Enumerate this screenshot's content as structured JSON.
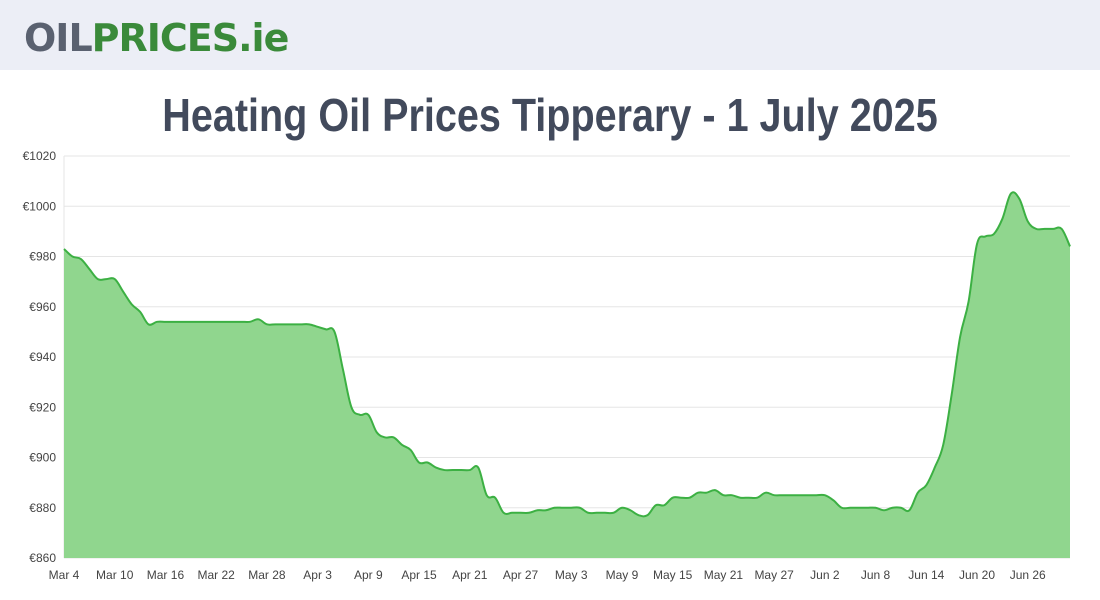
{
  "logo": {
    "part1": "OIL",
    "part2": "PRICES",
    "part3": ".ie"
  },
  "page_title": "Heating Oil Prices Tipperary - 1 July 2025",
  "colors": {
    "header_bg": "#eceef6",
    "line": "#3cb043",
    "fill": "#90d68e",
    "grid": "#e5e5e5",
    "title": "#424a5c"
  },
  "chart_data": {
    "type": "area",
    "title": "",
    "xlabel": "",
    "ylabel": "",
    "ylim": [
      860,
      1020
    ],
    "y_ticks": [
      860,
      880,
      900,
      920,
      940,
      960,
      980,
      1000,
      1020
    ],
    "y_tick_prefix": "€",
    "x_tick_labels": [
      "Mar 4",
      "Mar 10",
      "Mar 16",
      "Mar 22",
      "Mar 28",
      "Apr 3",
      "Apr 9",
      "Apr 15",
      "Apr 21",
      "Apr 27",
      "May 3",
      "May 9",
      "May 15",
      "May 21",
      "May 27",
      "Jun 2",
      "Jun 8",
      "Jun 14",
      "Jun 20",
      "Jun 26"
    ],
    "x": [
      "Mar 4",
      "Mar 5",
      "Mar 6",
      "Mar 7",
      "Mar 8",
      "Mar 9",
      "Mar 10",
      "Mar 11",
      "Mar 12",
      "Mar 13",
      "Mar 14",
      "Mar 15",
      "Mar 16",
      "Mar 17",
      "Mar 18",
      "Mar 19",
      "Mar 20",
      "Mar 21",
      "Mar 22",
      "Mar 23",
      "Mar 24",
      "Mar 25",
      "Mar 26",
      "Mar 27",
      "Mar 28",
      "Mar 29",
      "Mar 30",
      "Mar 31",
      "Apr 1",
      "Apr 2",
      "Apr 3",
      "Apr 4",
      "Apr 5",
      "Apr 6",
      "Apr 7",
      "Apr 8",
      "Apr 9",
      "Apr 10",
      "Apr 11",
      "Apr 12",
      "Apr 13",
      "Apr 14",
      "Apr 15",
      "Apr 16",
      "Apr 17",
      "Apr 18",
      "Apr 19",
      "Apr 20",
      "Apr 21",
      "Apr 22",
      "Apr 23",
      "Apr 24",
      "Apr 25",
      "Apr 26",
      "Apr 27",
      "Apr 28",
      "Apr 29",
      "Apr 30",
      "May 1",
      "May 2",
      "May 3",
      "May 4",
      "May 5",
      "May 6",
      "May 7",
      "May 8",
      "May 9",
      "May 10",
      "May 11",
      "May 12",
      "May 13",
      "May 14",
      "May 15",
      "May 16",
      "May 17",
      "May 18",
      "May 19",
      "May 20",
      "May 21",
      "May 22",
      "May 23",
      "May 24",
      "May 25",
      "May 26",
      "May 27",
      "May 28",
      "May 29",
      "May 30",
      "May 31",
      "Jun 1",
      "Jun 2",
      "Jun 3",
      "Jun 4",
      "Jun 5",
      "Jun 6",
      "Jun 7",
      "Jun 8",
      "Jun 9",
      "Jun 10",
      "Jun 11",
      "Jun 12",
      "Jun 13",
      "Jun 14",
      "Jun 15",
      "Jun 16",
      "Jun 17",
      "Jun 18",
      "Jun 19",
      "Jun 20",
      "Jun 21",
      "Jun 22",
      "Jun 23",
      "Jun 24",
      "Jun 25",
      "Jun 26",
      "Jun 27",
      "Jun 28",
      "Jun 29",
      "Jun 30",
      "Jul 1"
    ],
    "values": [
      983,
      980,
      979,
      975,
      971,
      971,
      971,
      966,
      961,
      958,
      953,
      954,
      954,
      954,
      954,
      954,
      954,
      954,
      954,
      954,
      954,
      954,
      954,
      955,
      953,
      953,
      953,
      953,
      953,
      953,
      952,
      951,
      950,
      935,
      920,
      917,
      917,
      910,
      908,
      908,
      905,
      903,
      898,
      898,
      896,
      895,
      895,
      895,
      895,
      896,
      885,
      884,
      878,
      878,
      878,
      878,
      879,
      879,
      880,
      880,
      880,
      880,
      878,
      878,
      878,
      878,
      880,
      879,
      877,
      877,
      881,
      881,
      884,
      884,
      884,
      886,
      886,
      887,
      885,
      885,
      884,
      884,
      884,
      886,
      885,
      885,
      885,
      885,
      885,
      885,
      885,
      883,
      880,
      880,
      880,
      880,
      880,
      879,
      880,
      880,
      879,
      886,
      889,
      896,
      905,
      925,
      948,
      962,
      985,
      988,
      989,
      995,
      1005,
      1003,
      994,
      991,
      991,
      991,
      991,
      984
    ]
  }
}
